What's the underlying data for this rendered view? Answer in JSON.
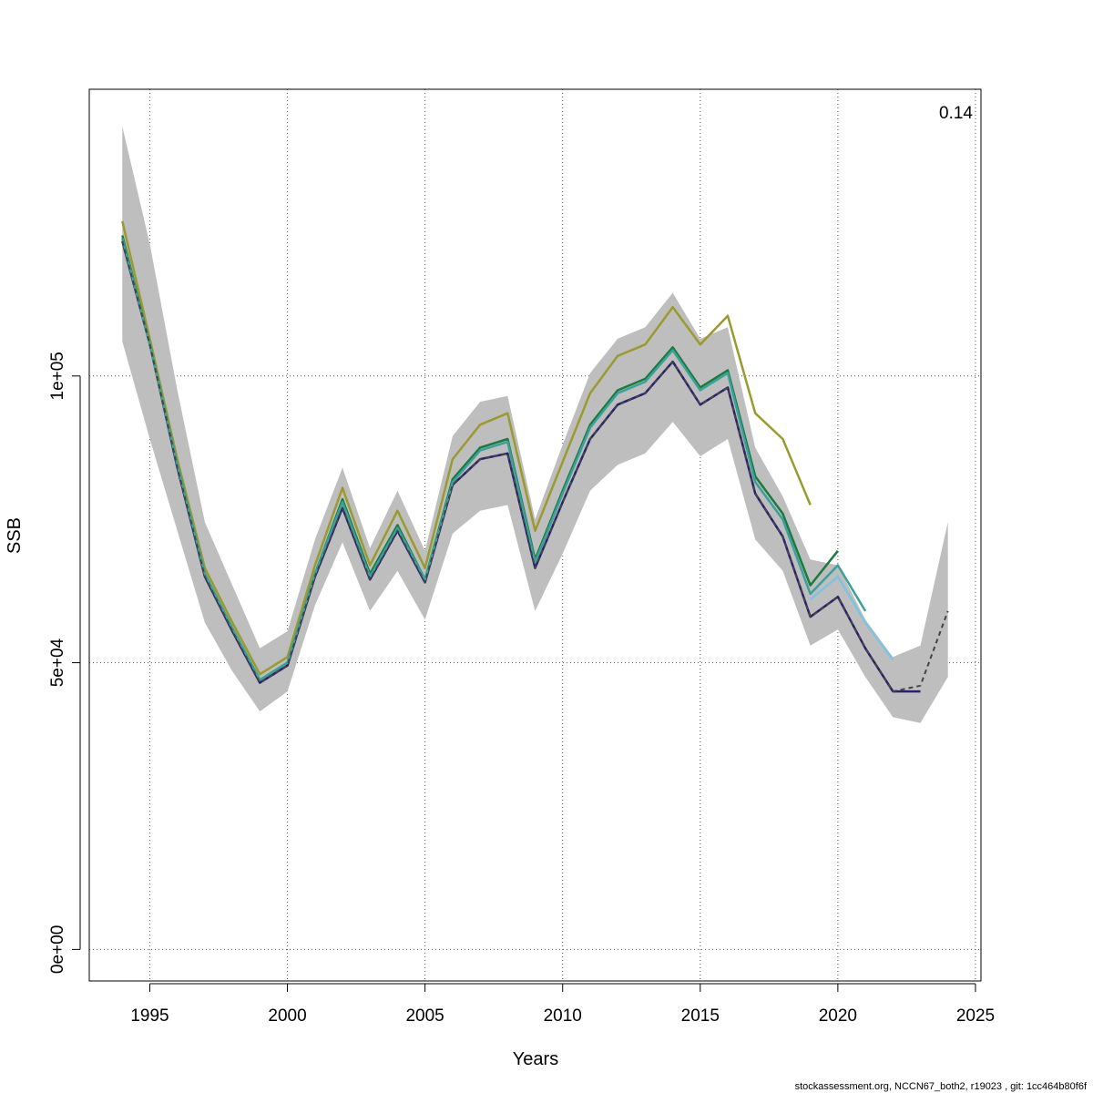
{
  "chart_data": {
    "type": "line",
    "title": "",
    "xlabel": "Years",
    "ylabel": "SSB",
    "xlim": [
      1992.8,
      2025.2
    ],
    "ylim": [
      -5500,
      150000
    ],
    "x_ticks": [
      1995,
      2000,
      2005,
      2010,
      2015,
      2020,
      2025
    ],
    "y_ticks": [
      0,
      50000,
      100000
    ],
    "y_tick_labels": [
      "0e+00",
      "5e+04",
      "1e+05"
    ],
    "grid": true,
    "annotation": "0.14",
    "footer": "stockassessment.org, NCCN67_both2, r19023 , git: 1cc464b80f6f",
    "confidence_band": {
      "x": [
        1994,
        1995,
        1996,
        1997,
        1998,
        1999,
        2000,
        2001,
        2002,
        2003,
        2004,
        2005,
        2006,
        2007,
        2008,
        2009,
        2010,
        2011,
        2012,
        2013,
        2014,
        2015,
        2016,
        2017,
        2018,
        2019,
        2020,
        2021,
        2022,
        2023,
        2024
      ],
      "lower": [
        106000,
        89000,
        73000,
        57000,
        48500,
        41500,
        45000,
        60000,
        71000,
        59000,
        66000,
        57500,
        72500,
        76500,
        77500,
        59000,
        69000,
        80000,
        84500,
        86500,
        92000,
        86000,
        89000,
        71500,
        66000,
        53000,
        55800,
        47500,
        40500,
        39500,
        47500
      ],
      "upper": [
        143500,
        123000,
        97500,
        74500,
        63500,
        52500,
        55500,
        71500,
        84000,
        70000,
        80000,
        69500,
        89500,
        95500,
        96500,
        75000,
        88000,
        100500,
        106500,
        108500,
        114500,
        106500,
        108500,
        87500,
        79000,
        68000,
        67000,
        57500,
        51000,
        53000,
        74500
      ]
    },
    "series": [
      {
        "color": "#2b1f75",
        "width": 2.5,
        "dash": "",
        "x": [
          1994,
          1995,
          1996,
          1997,
          1998,
          1999,
          2000,
          2001,
          2002,
          2003,
          2004,
          2005,
          2006,
          2007,
          2008,
          2009,
          2010,
          2011,
          2012,
          2013,
          2014,
          2015,
          2016,
          2017,
          2018,
          2019,
          2020,
          2021,
          2022,
          2023
        ],
        "y": [
          123500,
          105500,
          84000,
          65000,
          55500,
          46500,
          49500,
          65000,
          77000,
          64500,
          73000,
          64000,
          81000,
          85500,
          86500,
          66500,
          78000,
          89000,
          95000,
          97000,
          102500,
          95000,
          98000,
          79500,
          72000,
          58000,
          61500,
          52500,
          45000,
          45000
        ]
      },
      {
        "color": "#9a9a30",
        "width": 2.5,
        "dash": "",
        "x": [
          1994,
          1995,
          1996,
          1997,
          1998,
          1999,
          2000,
          2001,
          2002,
          2003,
          2004,
          2005,
          2006,
          2007,
          2008,
          2009,
          2010,
          2011,
          2012,
          2013,
          2014,
          2015,
          2016,
          2017,
          2018,
          2019
        ],
        "y": [
          127000,
          106500,
          85500,
          66500,
          57000,
          48000,
          51000,
          67000,
          80500,
          67000,
          76500,
          66500,
          85500,
          91500,
          93500,
          73000,
          85000,
          97000,
          103500,
          105500,
          112000,
          105500,
          110500,
          93500,
          89000,
          77500
        ]
      },
      {
        "color": "#1b7a3c",
        "width": 2.5,
        "dash": "",
        "x": [
          1994,
          1995,
          1996,
          1997,
          1998,
          1999,
          2000,
          2001,
          2002,
          2003,
          2004,
          2005,
          2006,
          2007,
          2008,
          2009,
          2010,
          2011,
          2012,
          2013,
          2014,
          2015,
          2016,
          2017,
          2018,
          2019,
          2020
        ],
        "y": [
          124500,
          105500,
          84500,
          65500,
          56000,
          47000,
          50000,
          65500,
          78500,
          65500,
          74000,
          64500,
          82000,
          87500,
          89000,
          68000,
          80000,
          91500,
          97500,
          99500,
          105000,
          98000,
          101000,
          82500,
          76000,
          63500,
          69500
        ]
      },
      {
        "color": "#3aa19a",
        "width": 2.5,
        "dash": "",
        "x": [
          1994,
          1995,
          1996,
          1997,
          1998,
          1999,
          2000,
          2001,
          2002,
          2003,
          2004,
          2005,
          2006,
          2007,
          2008,
          2009,
          2010,
          2011,
          2012,
          2013,
          2014,
          2015,
          2016,
          2017,
          2018,
          2019,
          2020,
          2021
        ],
        "y": [
          124000,
          105500,
          84500,
          65500,
          56000,
          47000,
          50000,
          65500,
          78000,
          65000,
          73500,
          64500,
          81500,
          87000,
          88500,
          67500,
          79500,
          91000,
          97000,
          99000,
          104500,
          97500,
          100500,
          81500,
          75000,
          62000,
          67000,
          59000
        ]
      },
      {
        "color": "#7ec3e0",
        "width": 2.5,
        "dash": "",
        "x": [
          2019,
          2020,
          2021,
          2022
        ],
        "y": [
          61000,
          65000,
          57000,
          50500
        ]
      },
      {
        "color": "#444444",
        "width": 2,
        "dash": "5,4",
        "x": [
          1994,
          1995,
          1996,
          1997,
          1998,
          1999,
          2000,
          2001,
          2002,
          2003,
          2004,
          2005,
          2006,
          2007,
          2008,
          2009,
          2010,
          2011,
          2012,
          2013,
          2014,
          2015,
          2016,
          2017,
          2018,
          2019,
          2020,
          2021,
          2022,
          2023,
          2024
        ],
        "y": [
          123500,
          105500,
          84000,
          65000,
          55500,
          46500,
          49500,
          65000,
          77000,
          64500,
          73000,
          64000,
          81000,
          85500,
          86500,
          66500,
          78000,
          89000,
          95000,
          97000,
          102500,
          95000,
          98000,
          79500,
          72000,
          58000,
          61500,
          52500,
          45000,
          46000,
          59000
        ]
      }
    ]
  }
}
